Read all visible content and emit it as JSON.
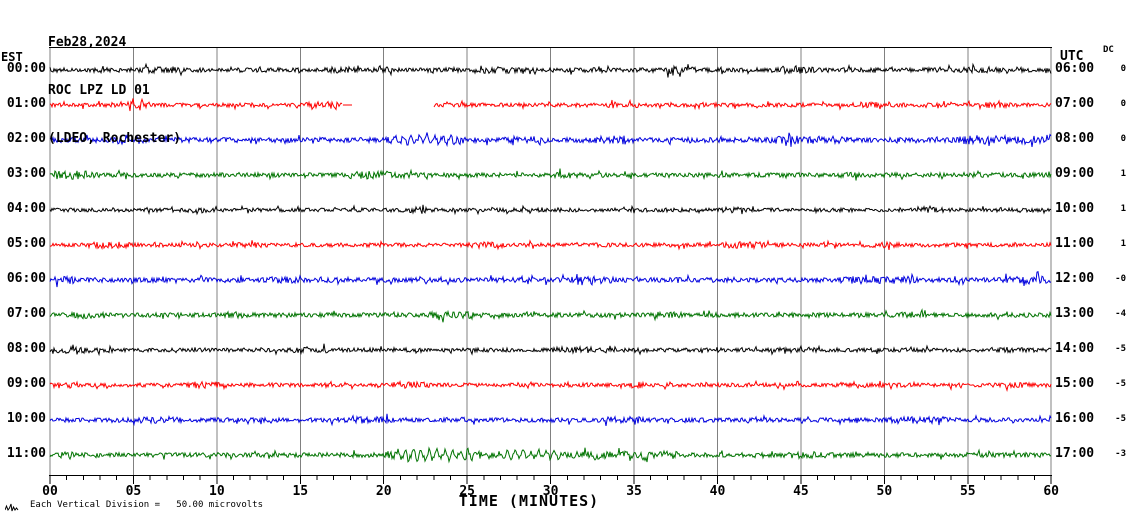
{
  "header": {
    "title_lines": [
      "Feb28,2024",
      "ROC LPZ LD 01",
      "(LDEO, Rochester)"
    ]
  },
  "axes": {
    "left_header": "EST",
    "right_header": "UTC",
    "dc_header": "DC",
    "x_label": "TIME (MINUTES)",
    "x_ticks": [
      "00",
      "05",
      "10",
      "15",
      "20",
      "25",
      "30",
      "35",
      "40",
      "45",
      "50",
      "55",
      "60"
    ]
  },
  "footer": {
    "scale_note": "Each Vertical Division =   50.00 microvolts"
  },
  "colors": {
    "black": "#000000",
    "red": "#ff0000",
    "blue": "#0000dd",
    "green": "#007300",
    "grid": "#808080",
    "background": "#ffffff"
  },
  "rows": [
    {
      "est": "00:00",
      "utc": "06:00",
      "dc": "0",
      "color": "#000000",
      "seed": 11,
      "base_amp": 2.2,
      "bursts": [
        [
          5.5,
          8,
          1.5
        ],
        [
          16.5,
          18.5,
          1.2
        ],
        [
          25.5,
          28,
          1.3
        ],
        [
          36.5,
          39,
          1.6
        ],
        [
          43,
          46,
          1.2
        ],
        [
          54.5,
          57,
          1.2
        ]
      ],
      "segments": [
        [
          0,
          60
        ]
      ]
    },
    {
      "est": "01:00",
      "utc": "07:00",
      "dc": "0",
      "color": "#ff0000",
      "seed": 22,
      "base_amp": 2.0,
      "bursts": [
        [
          3.5,
          6.5,
          1.3
        ],
        [
          15,
          17.5,
          1.6
        ],
        [
          33,
          35.5,
          1.6
        ],
        [
          48,
          50,
          1.2
        ],
        [
          55.5,
          58,
          1.0
        ]
      ],
      "segments": [
        [
          0,
          17.55
        ],
        [
          17.55,
          18.1,
          "flat"
        ],
        [
          23,
          60
        ]
      ]
    },
    {
      "est": "02:00",
      "utc": "08:00",
      "dc": "0",
      "color": "#0000dd",
      "seed": 33,
      "base_amp": 2.5,
      "bursts": [
        [
          3.5,
          6,
          1.6
        ],
        [
          20,
          25,
          2.8
        ],
        [
          27,
          30,
          1.2
        ],
        [
          32.5,
          35,
          2.0
        ],
        [
          43,
          48,
          1.3
        ],
        [
          54,
          60,
          1.7
        ]
      ],
      "segments": [
        [
          0,
          60
        ]
      ]
    },
    {
      "est": "03:00",
      "utc": "09:00",
      "dc": "1",
      "color": "#007300",
      "seed": 44,
      "base_amp": 2.2,
      "bursts": [
        [
          0,
          3,
          2.0
        ],
        [
          17.5,
          22,
          1.8
        ],
        [
          30,
          32,
          1.0
        ],
        [
          47,
          49,
          0.8
        ]
      ],
      "segments": [
        [
          0,
          60
        ]
      ]
    },
    {
      "est": "04:00",
      "utc": "10:00",
      "dc": "1",
      "color": "#000000",
      "seed": 55,
      "base_amp": 1.9,
      "bursts": [
        [
          8,
          10,
          1.0
        ],
        [
          21,
          23,
          1.2
        ],
        [
          29,
          31,
          1.0
        ],
        [
          40,
          42,
          1.0
        ],
        [
          52,
          54,
          0.8
        ]
      ],
      "segments": [
        [
          0,
          60
        ]
      ]
    },
    {
      "est": "05:00",
      "utc": "11:00",
      "dc": "1",
      "color": "#ff0000",
      "seed": 66,
      "base_amp": 2.0,
      "bursts": [
        [
          2,
          5,
          1.4
        ],
        [
          11,
          13,
          1.0
        ],
        [
          25,
          27,
          1.2
        ],
        [
          40,
          43,
          1.4
        ],
        [
          49,
          51,
          1.0
        ]
      ],
      "segments": [
        [
          0,
          60
        ]
      ]
    },
    {
      "est": "06:00",
      "utc": "12:00",
      "dc": "-0",
      "color": "#0000dd",
      "seed": 77,
      "base_amp": 2.4,
      "bursts": [
        [
          0,
          2,
          1.4
        ],
        [
          13,
          15,
          1.2
        ],
        [
          31,
          34,
          1.4
        ],
        [
          47,
          52,
          1.4
        ],
        [
          57,
          60,
          1.6
        ]
      ],
      "segments": [
        [
          0,
          60
        ]
      ]
    },
    {
      "est": "07:00",
      "utc": "13:00",
      "dc": "-4",
      "color": "#007300",
      "seed": 88,
      "base_amp": 2.2,
      "bursts": [
        [
          1,
          4,
          1.4
        ],
        [
          10,
          12,
          1.2
        ],
        [
          22,
          26,
          1.4
        ],
        [
          36,
          38,
          1.2
        ],
        [
          50,
          53,
          1.2
        ]
      ],
      "segments": [
        [
          0,
          60
        ]
      ]
    },
    {
      "est": "08:00",
      "utc": "14:00",
      "dc": "-5",
      "color": "#000000",
      "seed": 99,
      "base_amp": 2.0,
      "bursts": [
        [
          0,
          3,
          1.4
        ],
        [
          14,
          17,
          1.2
        ],
        [
          30,
          33,
          1.2
        ],
        [
          44,
          46,
          1.0
        ],
        [
          56,
          58,
          0.9
        ]
      ],
      "segments": [
        [
          0,
          60
        ]
      ]
    },
    {
      "est": "09:00",
      "utc": "15:00",
      "dc": "-5",
      "color": "#ff0000",
      "seed": 110,
      "base_amp": 2.0,
      "bursts": [
        [
          0,
          2,
          1.4
        ],
        [
          8,
          11,
          1.5
        ],
        [
          20,
          23,
          1.2
        ],
        [
          34,
          36,
          1.0
        ],
        [
          47,
          49,
          1.2
        ],
        [
          57,
          59,
          1.0
        ]
      ],
      "segments": [
        [
          0,
          60
        ]
      ]
    },
    {
      "est": "10:00",
      "utc": "16:00",
      "dc": "-5",
      "color": "#0000dd",
      "seed": 121,
      "base_amp": 2.2,
      "bursts": [
        [
          5,
          8,
          1.2
        ],
        [
          18,
          21,
          1.2
        ],
        [
          33,
          36,
          1.2
        ],
        [
          50,
          54,
          1.4
        ]
      ],
      "segments": [
        [
          0,
          60
        ]
      ]
    },
    {
      "est": "11:00",
      "utc": "17:00",
      "dc": "-3",
      "color": "#007300",
      "seed": 132,
      "base_amp": 2.3,
      "bursts": [
        [
          0.4,
          1.6,
          2.6
        ],
        [
          20,
          26,
          4.2
        ],
        [
          26,
          31,
          2.6
        ],
        [
          31,
          38,
          1.6
        ],
        [
          44,
          47,
          1.2
        ]
      ],
      "segments": [
        [
          0,
          60
        ]
      ]
    }
  ],
  "chart_data": {
    "type": "line",
    "subtype": "helicorder_seismogram",
    "date": "Feb28,2024",
    "station": "ROC LPZ LD 01",
    "network": "(LDEO, Rochester)",
    "xlabel": "TIME (MINUTES)",
    "x_range_minutes": [
      0,
      60
    ],
    "x_major_tick_minutes": 5,
    "x_minor_tick_minutes": 1,
    "left_time_zone": "EST",
    "right_time_zone": "UTC",
    "vertical_division": "50.00 microvolts",
    "trace_color_cycle": [
      "black",
      "red",
      "blue",
      "green"
    ],
    "rows_est": [
      "00:00",
      "01:00",
      "02:00",
      "03:00",
      "04:00",
      "05:00",
      "06:00",
      "07:00",
      "08:00",
      "09:00",
      "10:00",
      "11:00"
    ],
    "rows_utc": [
      "06:00",
      "07:00",
      "08:00",
      "09:00",
      "10:00",
      "11:00",
      "12:00",
      "13:00",
      "14:00",
      "15:00",
      "16:00",
      "17:00"
    ],
    "dc_offsets": [
      "0",
      "0",
      "0",
      "1",
      "1",
      "1",
      "-0",
      "-4",
      "-5",
      "-5",
      "-5",
      "-3"
    ],
    "events": [
      {
        "row_est": "01:00",
        "type": "data_gap",
        "start_min": 18.1,
        "end_min": 23.0,
        "note": "red trace flatlines ~17.6-18.1 min then has no data until ~23 min"
      },
      {
        "row_est": "02:00",
        "type": "elevated_amplitude",
        "start_min": 20,
        "end_min": 25,
        "note": "oscillatory burst on blue trace"
      },
      {
        "row_est": "11:00",
        "type": "elevated_amplitude",
        "start_min": 20,
        "end_min": 38,
        "note": "largest-amplitude oscillatory signal of the record on green trace"
      }
    ],
    "description": "12 hourly seismogram traces of continuous background noise, one hour per line, colors cycling black/red/blue/green, gray vertical gridlines every 5 minutes"
  }
}
